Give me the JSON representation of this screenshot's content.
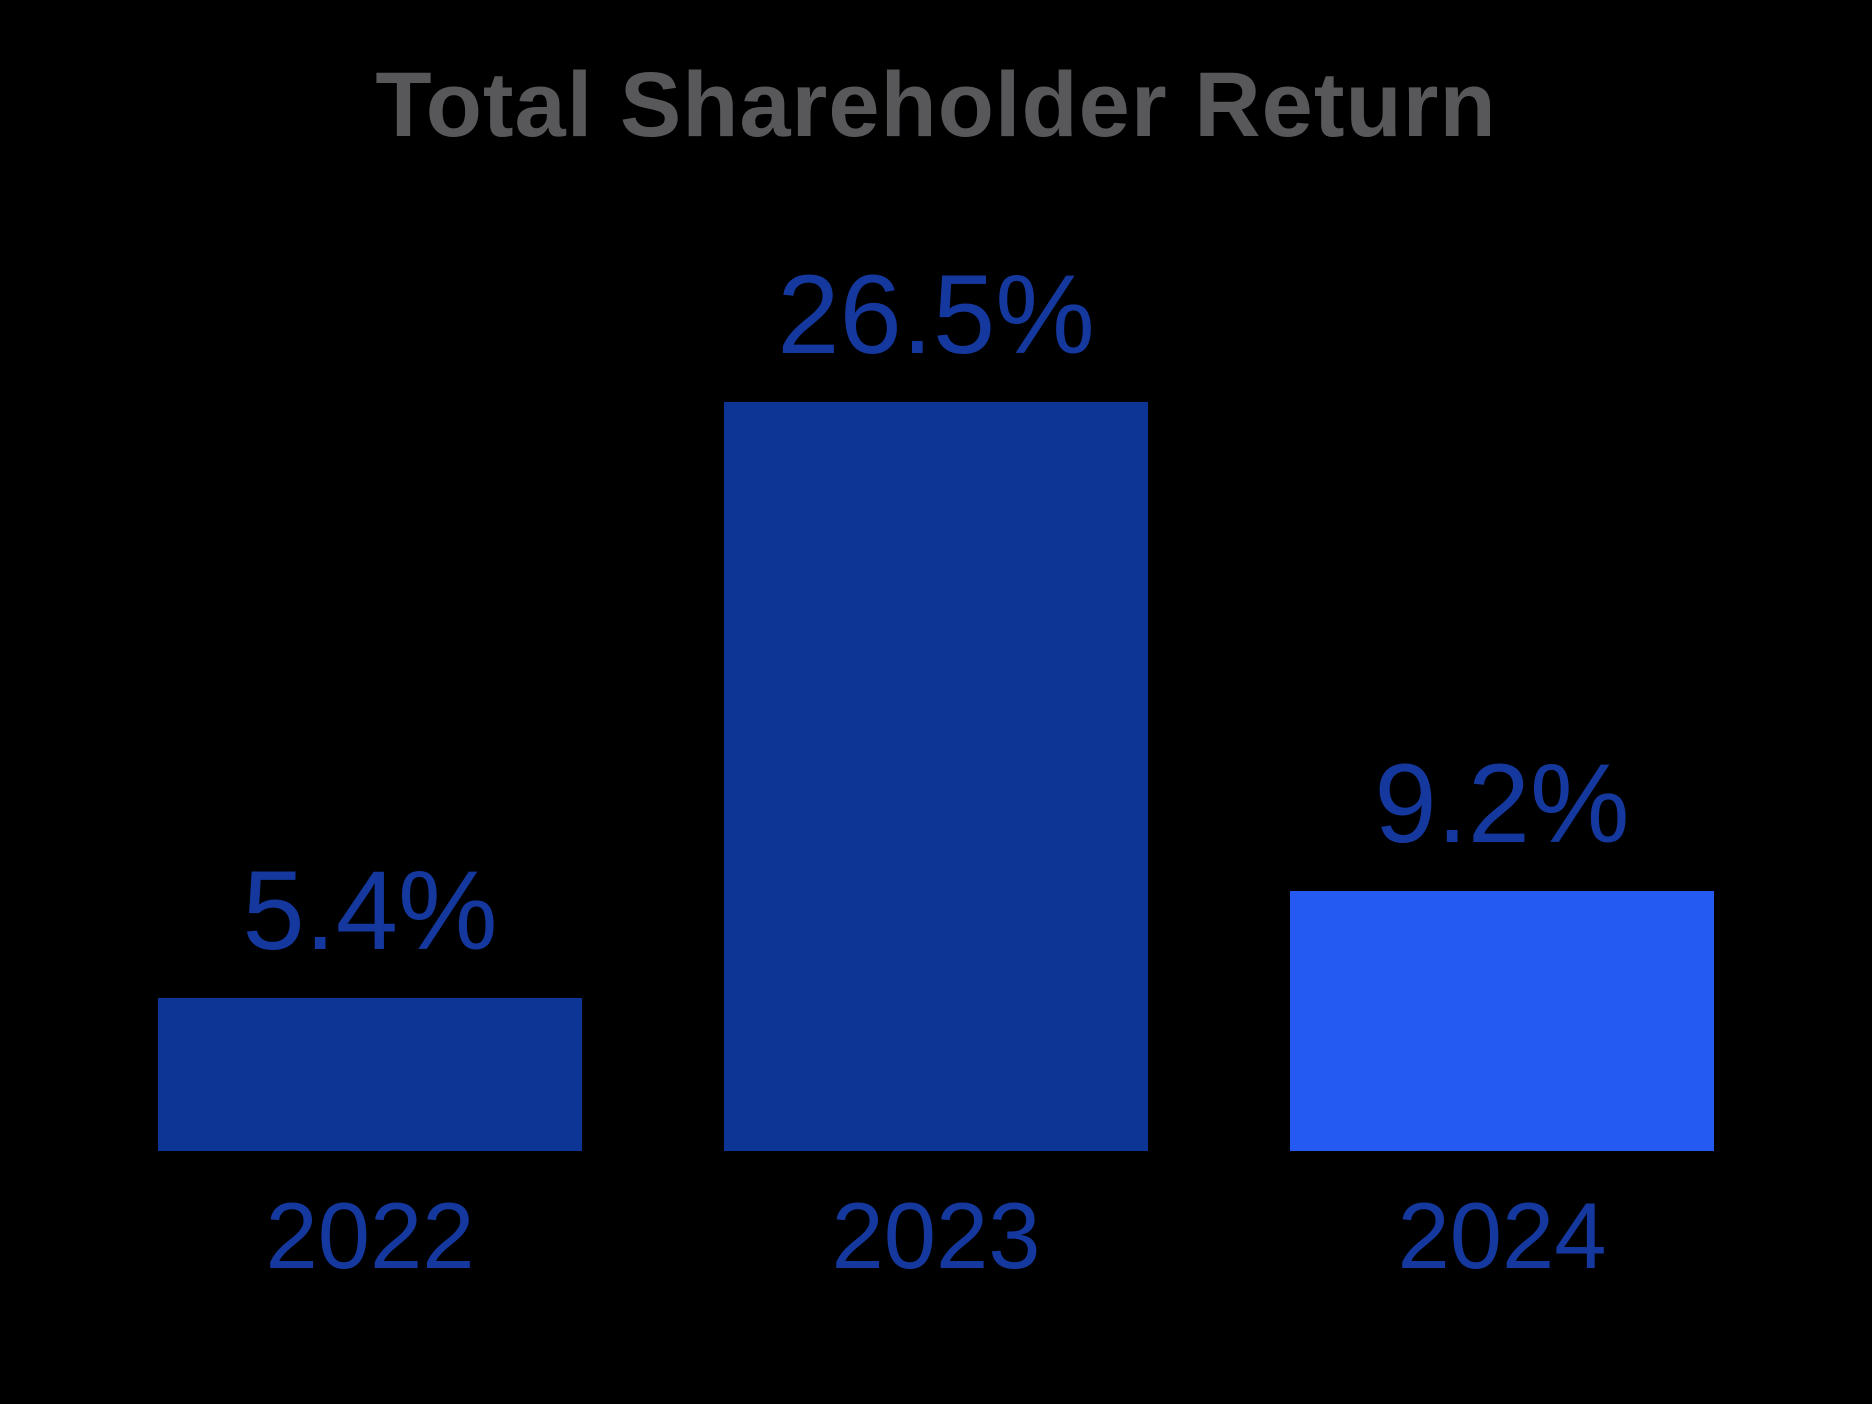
{
  "title": "Total Shareholder Return",
  "colors": {
    "background": "#000000",
    "title_text": "#58585A",
    "value_label_text": "#15389E",
    "axis_label_text": "#15389E",
    "bar_dark_blue": "#0C3596",
    "bar_bright_blue": "#245AF2"
  },
  "chart_data": {
    "type": "bar",
    "title": "Total Shareholder Return",
    "categories": [
      "2022",
      "2023",
      "2024"
    ],
    "values": [
      5.4,
      26.5,
      9.2
    ],
    "value_labels": [
      "5.4%",
      "26.5%",
      "9.2%"
    ],
    "bar_colors": [
      "#0C3596",
      "#0C3596",
      "#245AF2"
    ],
    "xlabel": "",
    "ylabel": "",
    "ylim": [
      0,
      28
    ],
    "grid": false,
    "legend": false,
    "axes_hidden": true,
    "background": "black",
    "annotation_position": "above-bars"
  }
}
